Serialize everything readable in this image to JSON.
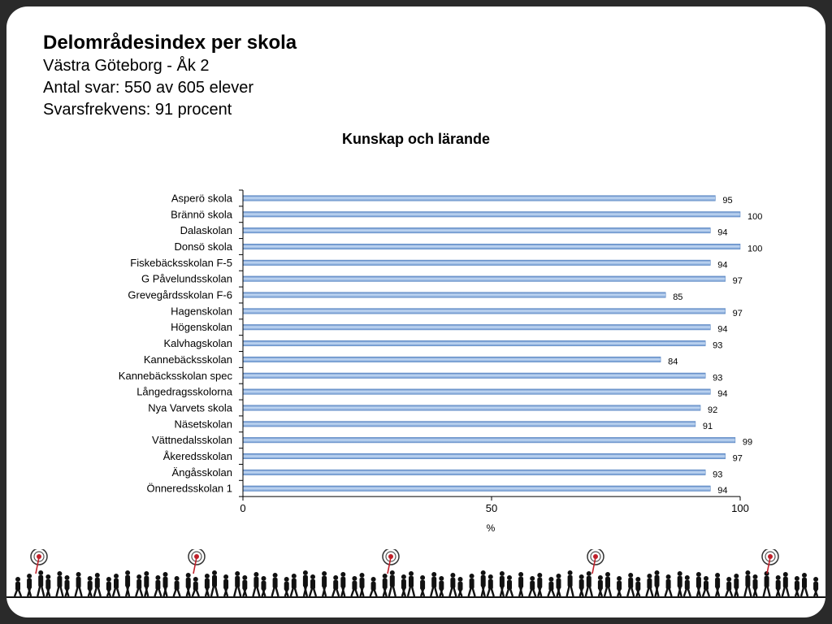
{
  "header": {
    "title": "Delområdesindex per skola",
    "line1": "Västra Göteborg - Åk 2",
    "line2": "Antal svar: 550 av 605 elever",
    "line3": "Svarsfrekvens: 91 procent"
  },
  "colors": {
    "bar": "#8db3e2",
    "bar_edge": "#4f7fbf",
    "axis": "#000000",
    "background": "#ffffff",
    "frame": "#2a2a2a"
  },
  "chart_data": {
    "type": "bar",
    "orientation": "horizontal",
    "title": "Kunskap och lärande",
    "xlabel": "%",
    "ylabel": "",
    "xlim": [
      0,
      100
    ],
    "xticks": [
      0,
      50,
      100
    ],
    "grid": false,
    "legend": "none",
    "categories": [
      "Asperö skola",
      "Brännö skola",
      "Dalaskolan",
      "Donsö skola",
      "Fiskebäcksskolan F-5",
      "G Påvelundsskolan",
      "Grevegårdsskolan F-6",
      "Hagenskolan",
      "Högenskolan",
      "Kalvhagskolan",
      "Kannebäcksskolan",
      "Kannebäcksskolan spec",
      "Långedragsskolorna",
      "Nya Varvets skola",
      "Näsetskolan",
      "Vättnedalsskolan",
      "Åkeredsskolan",
      "Ängåsskolan",
      "Önneredsskolan 1"
    ],
    "values": [
      95,
      100,
      94,
      100,
      94,
      97,
      85,
      97,
      94,
      93,
      84,
      93,
      94,
      92,
      91,
      99,
      97,
      93,
      94
    ]
  },
  "footer": {
    "decoration": "walking-people-silhouettes-with-targets"
  }
}
